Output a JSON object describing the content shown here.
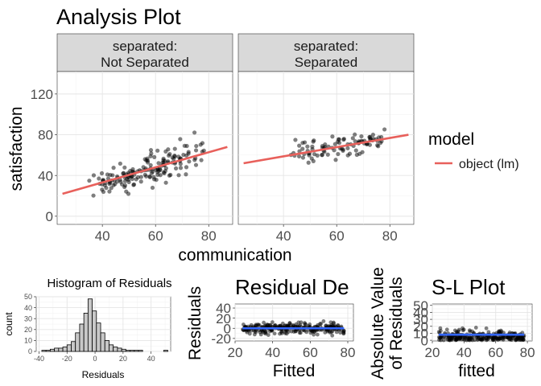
{
  "title": "Analysis Plot",
  "colors": {
    "lm_line": "#E8605B",
    "fit_line": "#3366FF",
    "strip_bg": "#D9D9D9",
    "point": "#000000",
    "bar_fill": "#C8C8C8"
  },
  "chart_data": [
    {
      "id": "main",
      "type": "scatter",
      "facet_var": "separated",
      "panels": [
        {
          "strip_line1": "separated:",
          "strip_line2": "Not Separated",
          "fit": {
            "x": [
              25,
              87
            ],
            "y": [
              22,
              68
            ]
          }
        },
        {
          "strip_line1": "separated:",
          "strip_line2": "Separated",
          "fit": {
            "x": [
              25,
              87
            ],
            "y": [
              52,
              80
            ]
          }
        }
      ],
      "xlabel": "communication",
      "ylabel": "satisfaction",
      "xlim": [
        23,
        89
      ],
      "ylim": [
        -8,
        142
      ],
      "xticks": [
        40,
        60,
        80
      ],
      "yticks": [
        0,
        40,
        80,
        120
      ],
      "legend": {
        "title": "model",
        "items": [
          "object (lm)"
        ]
      }
    },
    {
      "id": "hist",
      "type": "bar",
      "title": "Histogram of Residuals",
      "xlabel": "Residuals",
      "ylabel": "count",
      "xlim": [
        -42,
        54
      ],
      "ylim": [
        0,
        50
      ],
      "xticks": [
        -40,
        -20,
        0,
        20,
        40
      ],
      "yticks": [
        0,
        10,
        20,
        30,
        40,
        50
      ],
      "bin_start": -38,
      "bin_width": 3,
      "counts": [
        1,
        1,
        2,
        3,
        3,
        4,
        6,
        9,
        17,
        25,
        35,
        48,
        37,
        26,
        17,
        10,
        6,
        4,
        3,
        2,
        1,
        1,
        1,
        1,
        0,
        0,
        0,
        0,
        0,
        1
      ]
    },
    {
      "id": "resid",
      "type": "scatter",
      "title": "Residual De",
      "xlabel": "Fitted",
      "ylabel": "Residuals",
      "xlim": [
        20,
        83
      ],
      "ylim": [
        -25,
        48
      ],
      "xticks": [
        20,
        40,
        60,
        80
      ],
      "yticks": [
        -20,
        0,
        20,
        40
      ],
      "fit": {
        "x": [
          24,
          78
        ],
        "y": [
          0,
          0
        ]
      }
    },
    {
      "id": "sl",
      "type": "scatter",
      "title": "S-L Plot",
      "xlabel": "fitted",
      "ylabel_line1": "Absolute Value",
      "ylabel_line2": "of Residuals",
      "xlim": [
        20,
        83
      ],
      "ylim": [
        -1,
        52
      ],
      "xticks": [
        20,
        40,
        60,
        80
      ],
      "yticks": [
        0,
        10,
        20,
        30,
        40,
        50
      ],
      "fit": {
        "x": [
          24,
          78
        ],
        "y": [
          8,
          8
        ]
      }
    }
  ]
}
